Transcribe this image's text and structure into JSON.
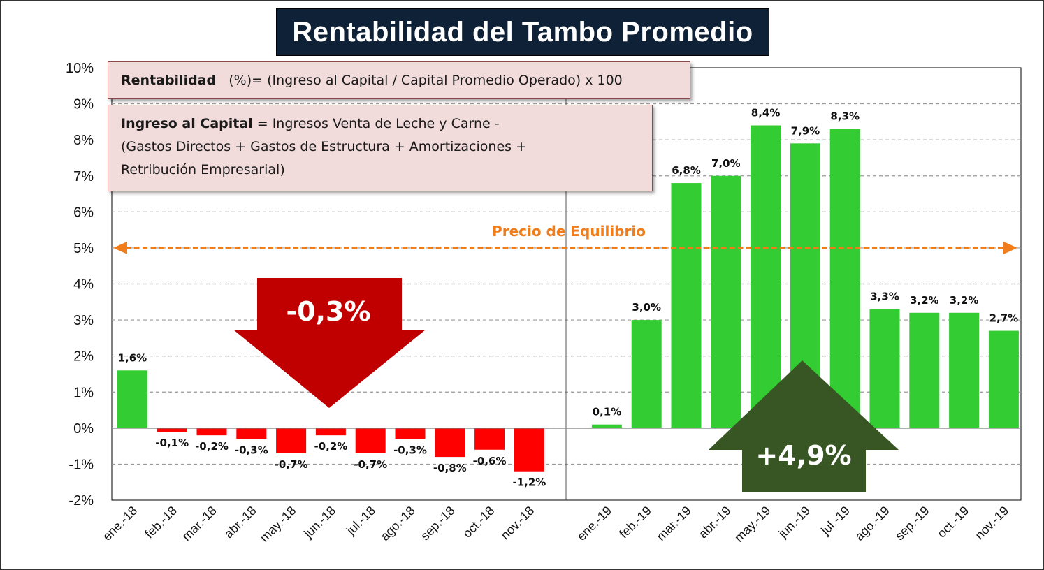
{
  "title": "Rentabilidad del Tambo Promedio",
  "notes": {
    "formula_bold": "Rentabilidad",
    "formula_rest": "(%)= (Ingreso al Capital / Capital Promedio Operado) x 100",
    "income_bold": "Ingreso al Capital",
    "income_line1": "= Ingresos Venta de Leche  y Carne  -",
    "income_line2": "(Gastos Directos  + Gastos de Estructura  + Amortizaciones  +",
    "income_line3": "Retribución Empresarial)"
  },
  "equilibrium_label": "Precio de Equilibrio",
  "down_arrow_label": "-0,3%",
  "up_arrow_label": "+4,9%",
  "colors": {
    "positive": "#33cc33",
    "negative": "#ff0000",
    "equilibrium": "#f07c1a",
    "down_arrow": "#c00000",
    "up_arrow": "#375623",
    "title_bg": "#0f2137"
  },
  "chart_data": {
    "type": "bar",
    "title": "Rentabilidad del Tambo Promedio",
    "ylim": [
      -2,
      10
    ],
    "y_ticks": [
      "-2%",
      "-1%",
      "0%",
      "1%",
      "2%",
      "3%",
      "4%",
      "5%",
      "6%",
      "7%",
      "8%",
      "9%",
      "10%"
    ],
    "grid": true,
    "reference_line": {
      "value": 5,
      "label": "Precio de Equilibrio"
    },
    "groups": [
      {
        "categories": [
          "ene.-18",
          "feb.-18",
          "mar.-18",
          "abr.-18",
          "may.-18",
          "jun.-18",
          "jul.-18",
          "ago.-18",
          "sep.-18",
          "oct.-18",
          "nov.-18"
        ],
        "values": [
          1.6,
          -0.1,
          -0.2,
          -0.3,
          -0.7,
          -0.2,
          -0.7,
          -0.3,
          -0.8,
          -0.6,
          -1.2
        ],
        "labels": [
          "1,6%",
          "-0,1%",
          "-0,2%",
          "-0,3%",
          "-0,7%",
          "-0,2%",
          "-0,7%",
          "-0,3%",
          "-0,8%",
          "-0,6%",
          "-1,2%"
        ]
      },
      {
        "categories": [
          "ene.-19",
          "feb.-19",
          "mar.-19",
          "abr.-19",
          "may.-19",
          "jun.-19",
          "jul.-19",
          "ago.-19",
          "sep.-19",
          "oct.-19",
          "nov.-19"
        ],
        "values": [
          0.1,
          3.0,
          6.8,
          7.0,
          8.4,
          7.9,
          8.3,
          3.3,
          3.2,
          3.2,
          2.7
        ],
        "labels": [
          "0,1%",
          "3,0%",
          "6,8%",
          "7,0%",
          "8,4%",
          "7,9%",
          "8,3%",
          "3,3%",
          "3,2%",
          "3,2%",
          "2,7%"
        ]
      }
    ]
  }
}
